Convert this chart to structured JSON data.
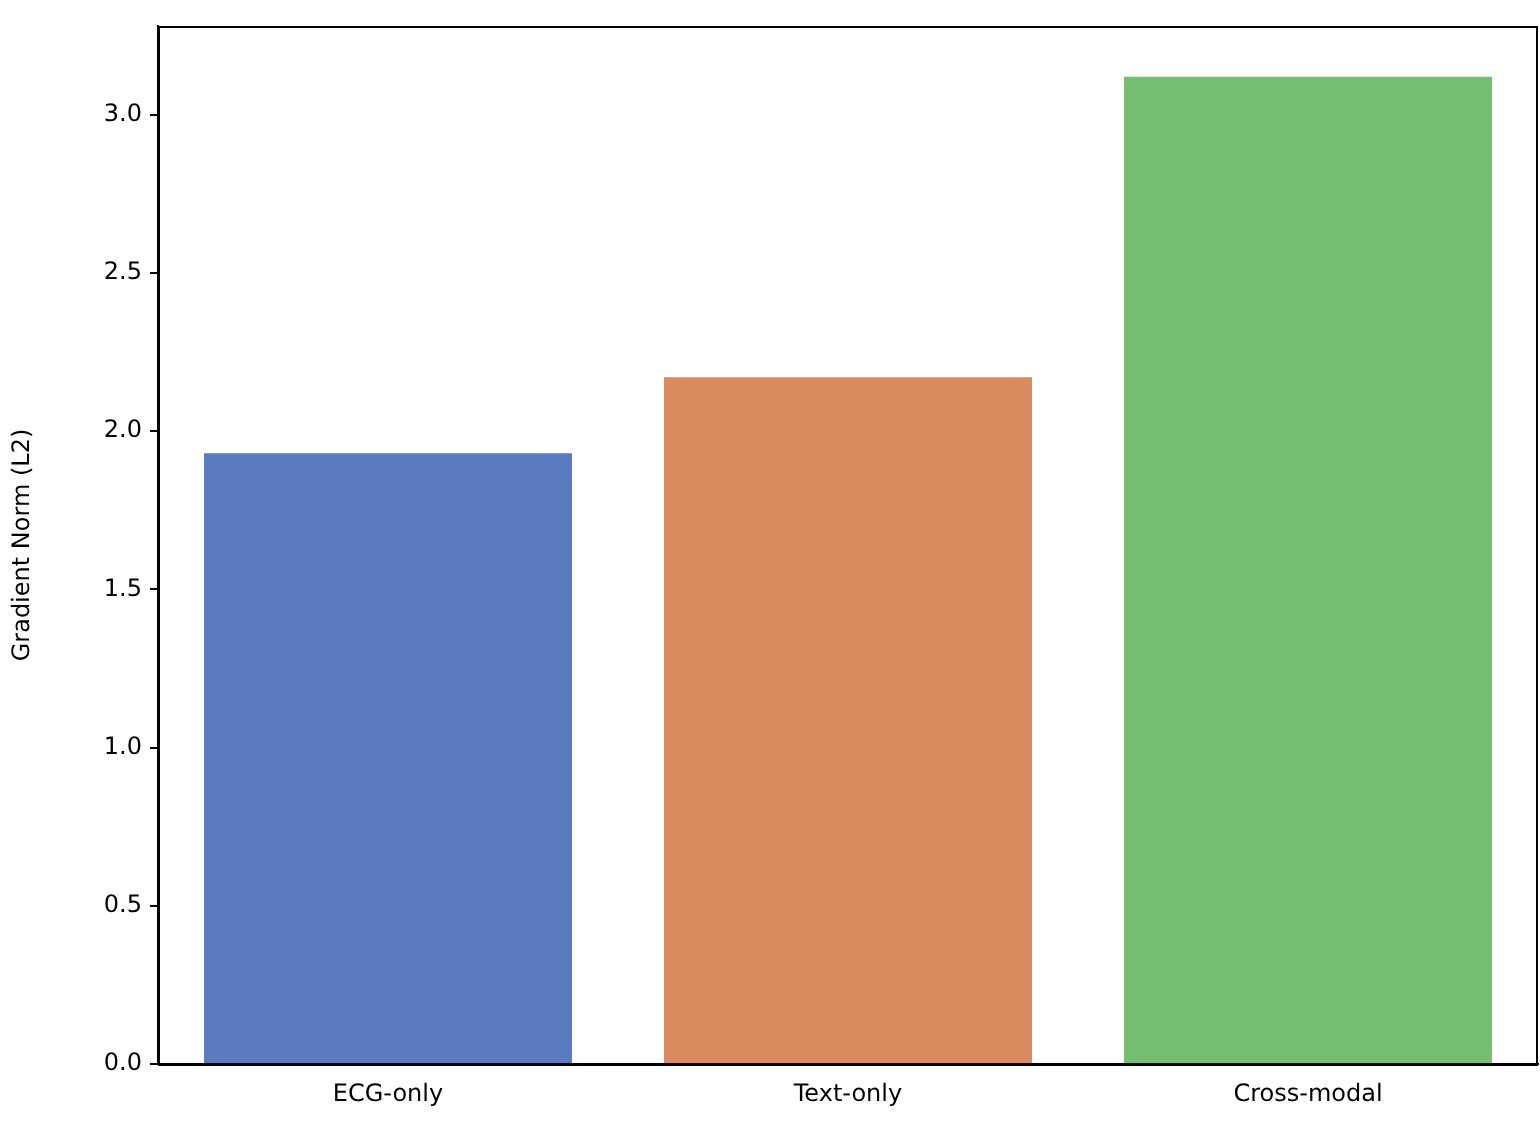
{
  "chart_data": {
    "type": "bar",
    "ylabel": "Gradient Norm (L2)",
    "categories": [
      "ECG-only",
      "Text-only",
      "Cross-modal"
    ],
    "values": [
      1.93,
      2.17,
      3.12
    ],
    "colors": [
      "#5a7bc0",
      "#d98a5f",
      "#75bf70"
    ],
    "ylim": [
      0,
      3.28
    ],
    "yticks": [
      {
        "value": 0,
        "label": "0.0"
      },
      {
        "value": 0.5,
        "label": "0.5"
      },
      {
        "value": 1,
        "label": "1.0"
      },
      {
        "value": 1.5,
        "label": "1.5"
      },
      {
        "value": 2,
        "label": "2.0"
      },
      {
        "value": 2.5,
        "label": "2.5"
      },
      {
        "value": 3,
        "label": "3.0"
      }
    ],
    "grid": false,
    "legend": false
  }
}
